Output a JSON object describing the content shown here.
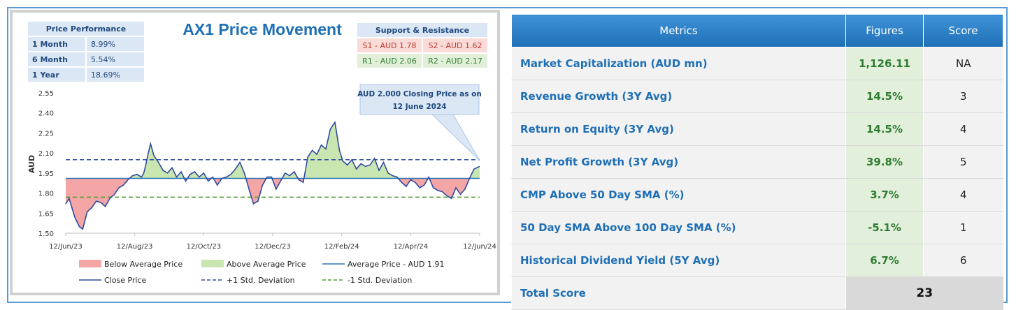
{
  "price_performance": {
    "header": "Price Performance",
    "rows": [
      {
        "label": "1 Month",
        "value": "8.99%"
      },
      {
        "label": "6 Month",
        "value": "5.54%"
      },
      {
        "label": "1 Year",
        "value": "18.69%"
      }
    ]
  },
  "support_resistance": {
    "header": "Support & Resistance",
    "s1": "S1 - AUD 1.78",
    "s2": "S2 - AUD 1.62",
    "r1": "R1 - AUD 2.06",
    "r2": "R2 - AUD 2.17"
  },
  "colors": {
    "below_fill": "#f4a6a6",
    "above_fill": "#c9e6b1",
    "line": "#2f4b9e",
    "avg_line": "#2e75b6",
    "plus_sd": "#2f4b9e",
    "minus_sd": "#4c9a2a",
    "header_blue": "#1f6fb5",
    "figure_green": "#2e7d32"
  },
  "chart_data": {
    "type": "area",
    "title": "AX1 Price Movement",
    "ylabel": "AUD",
    "xlabel": "",
    "ylim": [
      1.5,
      2.55
    ],
    "yticks": [
      1.5,
      1.65,
      1.8,
      1.95,
      2.1,
      2.25,
      2.4,
      2.55
    ],
    "ytick_labels": [
      "1.50",
      "1.65",
      "1.80",
      "1.95",
      "2.10",
      "2.25",
      "2.40",
      "2.55"
    ],
    "x_range": [
      "2023-06-12",
      "2024-06-12"
    ],
    "xtick_labels": [
      "12/Jun/23",
      "12/Aug/23",
      "12/Oct/23",
      "12/Dec/23",
      "12/Feb/24",
      "12/Apr/24",
      "12/Jun/24"
    ],
    "average_price": 1.91,
    "plus_1sd": 2.05,
    "minus_1sd": 1.77,
    "series": [
      {
        "name": "Close Price",
        "x": [
          "2023-06-12",
          "2023-06-15",
          "2023-06-20",
          "2023-06-24",
          "2023-06-27",
          "2023-07-01",
          "2023-07-05",
          "2023-07-09",
          "2023-07-13",
          "2023-07-17",
          "2023-07-21",
          "2023-07-25",
          "2023-07-29",
          "2023-08-02",
          "2023-08-06",
          "2023-08-10",
          "2023-08-14",
          "2023-08-18",
          "2023-08-20",
          "2023-08-22",
          "2023-08-24",
          "2023-08-26",
          "2023-08-29",
          "2023-09-02",
          "2023-09-06",
          "2023-09-10",
          "2023-09-14",
          "2023-09-18",
          "2023-09-22",
          "2023-09-26",
          "2023-09-30",
          "2023-10-04",
          "2023-10-08",
          "2023-10-12",
          "2023-10-16",
          "2023-10-20",
          "2023-10-24",
          "2023-10-28",
          "2023-11-01",
          "2023-11-05",
          "2023-11-09",
          "2023-11-13",
          "2023-11-17",
          "2023-11-21",
          "2023-11-25",
          "2023-11-29",
          "2023-12-03",
          "2023-12-07",
          "2023-12-11",
          "2023-12-15",
          "2023-12-19",
          "2023-12-23",
          "2023-12-27",
          "2023-12-31",
          "2024-01-04",
          "2024-01-08",
          "2024-01-12",
          "2024-01-16",
          "2024-01-20",
          "2024-01-24",
          "2024-01-28",
          "2024-02-01",
          "2024-02-05",
          "2024-02-09",
          "2024-02-12",
          "2024-02-16",
          "2024-02-20",
          "2024-02-24",
          "2024-02-28",
          "2024-03-03",
          "2024-03-07",
          "2024-03-11",
          "2024-03-15",
          "2024-03-19",
          "2024-03-23",
          "2024-03-27",
          "2024-03-31",
          "2024-04-04",
          "2024-04-08",
          "2024-04-12",
          "2024-04-16",
          "2024-04-20",
          "2024-04-24",
          "2024-04-28",
          "2024-05-02",
          "2024-05-06",
          "2024-05-10",
          "2024-05-14",
          "2024-05-18",
          "2024-05-22",
          "2024-05-26",
          "2024-05-30",
          "2024-06-03",
          "2024-06-07",
          "2024-06-12"
        ],
        "y": [
          1.72,
          1.76,
          1.62,
          1.55,
          1.53,
          1.66,
          1.69,
          1.74,
          1.73,
          1.7,
          1.76,
          1.79,
          1.84,
          1.86,
          1.9,
          1.93,
          1.94,
          1.92,
          1.95,
          2.02,
          2.1,
          2.17,
          2.08,
          2.03,
          1.97,
          1.95,
          1.99,
          1.92,
          1.96,
          1.89,
          1.94,
          1.96,
          1.92,
          1.95,
          1.89,
          1.92,
          1.86,
          1.91,
          1.92,
          1.94,
          1.98,
          2.03,
          1.95,
          1.83,
          1.72,
          1.74,
          1.86,
          1.92,
          1.92,
          1.83,
          1.89,
          1.95,
          1.93,
          1.96,
          1.9,
          1.88,
          2.07,
          2.12,
          2.09,
          2.16,
          2.13,
          2.28,
          2.33,
          2.12,
          2.04,
          2.01,
          2.05,
          1.98,
          2.02,
          2.0,
          2.01,
          2.06,
          1.97,
          2.03,
          1.95,
          1.93,
          1.92,
          1.88,
          1.85,
          1.9,
          1.88,
          1.84,
          1.86,
          1.92,
          1.84,
          1.82,
          1.81,
          1.78,
          1.76,
          1.84,
          1.79,
          1.83,
          1.91,
          1.98,
          2.0
        ]
      }
    ],
    "legend": [
      {
        "label": "Below Average Price",
        "kind": "fill-red"
      },
      {
        "label": "Above Average Price",
        "kind": "fill-green"
      },
      {
        "label": "Average Price - AUD 1.91",
        "kind": "line-avg"
      },
      {
        "label": "Close Price",
        "kind": "line-close"
      },
      {
        "label": "+1 Std. Deviation",
        "kind": "dash-blue"
      },
      {
        "label": "-1 Std. Deviation",
        "kind": "dash-green"
      }
    ],
    "annotation": {
      "line1": "AUD 2.000 Closing Price as on",
      "line2": "12 June 2024"
    },
    "grid": false,
    "legend_position": "bottom"
  },
  "metrics": {
    "headers": {
      "metric": "Metrics",
      "figures": "Figures",
      "score": "Score"
    },
    "rows": [
      {
        "metric": "Market Capitalization (AUD mn)",
        "figure": "1,126.11",
        "score": "NA"
      },
      {
        "metric": "Revenue Growth (3Y Avg)",
        "figure": "14.5%",
        "score": "3"
      },
      {
        "metric": "Return on Equity (3Y Avg)",
        "figure": "14.5%",
        "score": "4"
      },
      {
        "metric": "Net Profit Growth (3Y Avg)",
        "figure": "39.8%",
        "score": "5"
      },
      {
        "metric": "CMP Above 50 Day SMA (%)",
        "figure": "3.7%",
        "score": "4"
      },
      {
        "metric": "50 Day SMA Above 100 Day SMA (%)",
        "figure": "-5.1%",
        "score": "1"
      },
      {
        "metric": "Historical Dividend Yield (5Y Avg)",
        "figure": "6.7%",
        "score": "6"
      }
    ],
    "total_label": "Total Score",
    "total_score": "23"
  }
}
